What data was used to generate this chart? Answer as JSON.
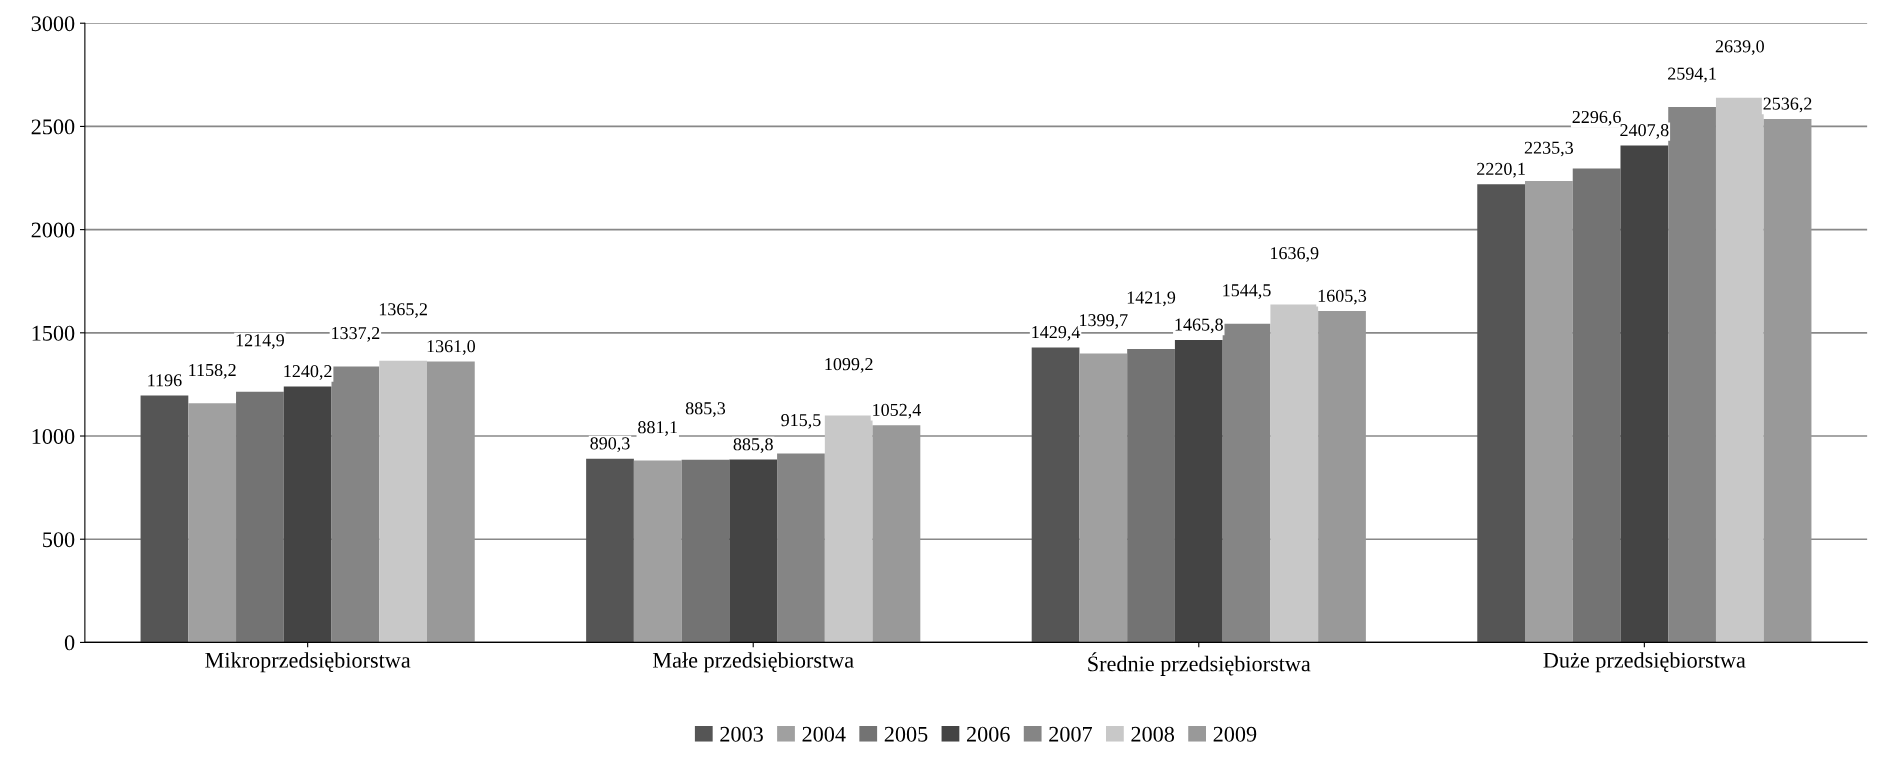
{
  "chart_data": {
    "type": "bar",
    "categories": [
      "Mikroprzedsiębiorstwa",
      "Małe przedsiębiorstwa",
      "Średnie przedsiębiorstwa",
      "Duże przedsiębiorstwa"
    ],
    "series": [
      {
        "name": "2003",
        "color": "#555555",
        "values": [
          1196,
          890.3,
          1429.4,
          2220.1
        ],
        "value_labels": [
          "1196",
          "890,3",
          "1429,4",
          "2220,1"
        ]
      },
      {
        "name": "2004",
        "color": "#a0a0a0",
        "values": [
          1158.2,
          881.1,
          1399.7,
          2235.3
        ],
        "value_labels": [
          "1158,2",
          "881,1",
          "1399,7",
          "2235,3"
        ]
      },
      {
        "name": "2005",
        "color": "#737373",
        "values": [
          1214.9,
          885.3,
          1421.9,
          2296.6
        ],
        "value_labels": [
          "1214,9",
          "885,3",
          "1421,9",
          "2296,6"
        ]
      },
      {
        "name": "2006",
        "color": "#444444",
        "values": [
          1240.2,
          885.8,
          1465.8,
          2407.8
        ],
        "value_labels": [
          "1240,2",
          "885,8",
          "1465,8",
          "2407,8"
        ]
      },
      {
        "name": "2007",
        "color": "#858585",
        "values": [
          1337.2,
          915.5,
          1544.5,
          2594.1
        ],
        "value_labels": [
          "1337,2",
          "915,5",
          "1544,5",
          "2594,1"
        ]
      },
      {
        "name": "2008",
        "color": "#c8c8c8",
        "values": [
          1365.2,
          1099.2,
          1636.9,
          2639.0
        ],
        "value_labels": [
          "1365,2",
          "1099,2",
          "1636,9",
          "2639,0"
        ]
      },
      {
        "name": "2009",
        "color": "#999999",
        "values": [
          1361.0,
          1052.4,
          1605.3,
          2536.2
        ],
        "value_labels": [
          "1361,0",
          "1052,4",
          "1605,3",
          "2536,2"
        ]
      }
    ],
    "ylim": [
      0,
      3000
    ],
    "yticks": [
      0,
      500,
      1000,
      1500,
      2000,
      2500,
      3000
    ],
    "grid": "y",
    "legend": "bottom"
  }
}
